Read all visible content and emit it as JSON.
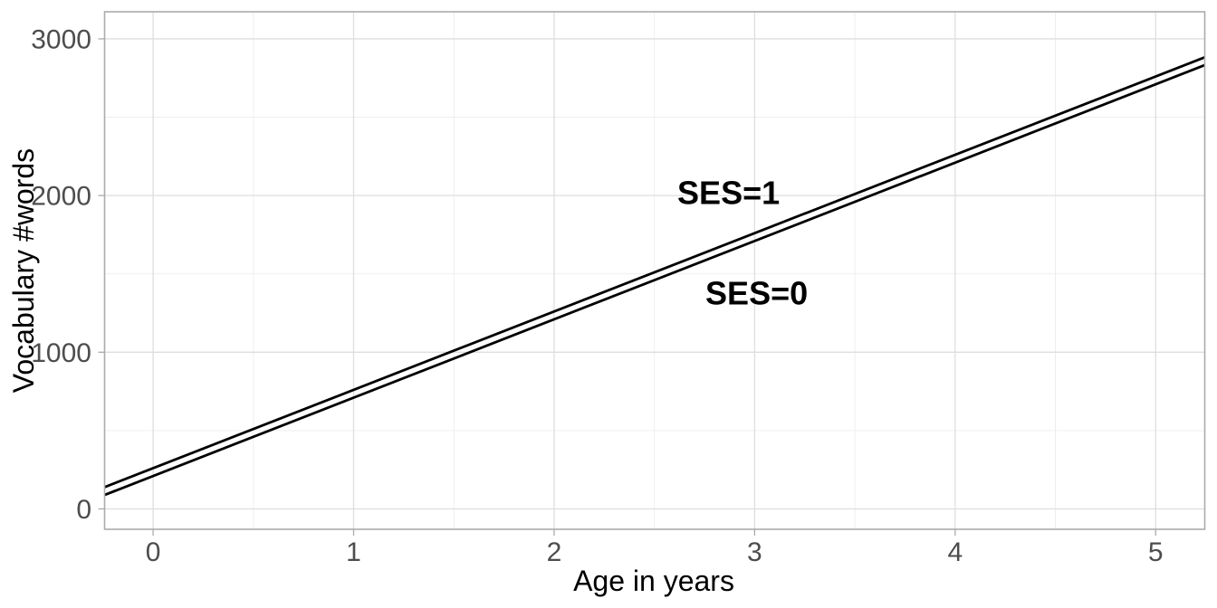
{
  "chart_data": {
    "type": "line",
    "title": "",
    "xlabel": "Age in years",
    "ylabel": "Vocabulary #words",
    "x_ticks": [
      0,
      1,
      2,
      3,
      4,
      5
    ],
    "x_tick_labels": [
      "0",
      "1",
      "2",
      "3",
      "4",
      "5"
    ],
    "y_ticks": [
      0,
      1000,
      2000,
      3000
    ],
    "y_tick_labels": [
      "0",
      "1000",
      "2000",
      "3000"
    ],
    "x_minor_gridlines": [
      0.5,
      1.5,
      2.5,
      3.5,
      4.5
    ],
    "y_minor_gridlines": [
      500,
      1500,
      2500
    ],
    "xlim": [
      -0.242,
      5.245
    ],
    "ylim": [
      -130,
      3173
    ],
    "grid": "major+minor",
    "legend": "none",
    "series": [
      {
        "name": "SES=1",
        "kind": "straight-line",
        "intercept": 260,
        "slope": 500,
        "x": [
          -0.242,
          5.245
        ],
        "y": [
          139,
          2882.5
        ],
        "color": "#000000"
      },
      {
        "name": "SES=0",
        "kind": "straight-line",
        "intercept": 210,
        "slope": 500,
        "x": [
          -0.242,
          5.245
        ],
        "y": [
          89,
          2832.5
        ],
        "color": "#000000"
      }
    ],
    "annotations": [
      {
        "text": "SES=1",
        "x": 2.87,
        "y": 2020
      },
      {
        "text": "SES=0",
        "x": 3.01,
        "y": 1380
      }
    ],
    "colors": {
      "panel_background": "#FFFFFF",
      "panel_border": "#ABABAB",
      "grid_major": "#DEDEDE",
      "grid_minor": "#EDEDED",
      "tick_mark": "#ABABAB",
      "tick_label": "#4D4D4D",
      "axis_title": "#000000",
      "annotation": "#000000"
    }
  }
}
